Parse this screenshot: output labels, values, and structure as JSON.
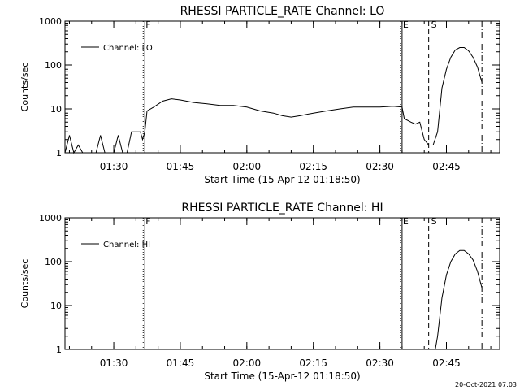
{
  "footer": {
    "timestamp": "20-Oct-2021 07:03"
  },
  "chart_data": [
    {
      "type": "line",
      "title": "RHESSI PARTICLE_RATE Channel: LO",
      "xlabel": "Start Time (15-Apr-12 01:18:50)",
      "ylabel": "Counts/sec",
      "y_scale": "log",
      "xlim": [
        "01:19",
        "02:57"
      ],
      "ylim": [
        1,
        1000
      ],
      "x_ticks": [
        "01:30",
        "01:45",
        "02:00",
        "02:15",
        "02:30",
        "02:45"
      ],
      "y_ticks": [
        "1",
        "10",
        "100",
        "1000"
      ],
      "legend": {
        "label": "Channel: LO",
        "position": "top-left"
      },
      "markers": [
        {
          "label": "F",
          "style": "dotted",
          "time": "01:37"
        },
        {
          "label": "",
          "style": "solid",
          "time": "01:37"
        },
        {
          "label": "E",
          "style": "dotted",
          "time": "02:35"
        },
        {
          "label": "",
          "style": "solid",
          "time": "02:35"
        },
        {
          "label": "S",
          "style": "dashed",
          "time": "02:41"
        },
        {
          "label": "",
          "style": "dash-dot",
          "time": "02:53"
        }
      ],
      "series": [
        {
          "name": "Channel: LO",
          "points": [
            [
              "01:19",
              1
            ],
            [
              "01:20",
              2.5
            ],
            [
              "01:21",
              1
            ],
            [
              "01:22",
              1.5
            ],
            [
              "01:23",
              1
            ],
            [
              "01:26",
              1
            ],
            [
              "01:27",
              2.5
            ],
            [
              "01:28",
              1
            ],
            [
              "01:30",
              1
            ],
            [
              "01:31",
              2.5
            ],
            [
              "01:32",
              1
            ],
            [
              "01:33",
              1
            ],
            [
              "01:34",
              3
            ],
            [
              "01:35",
              3
            ],
            [
              "01:36",
              3
            ],
            [
              "01:36.5",
              2
            ],
            [
              "01:37",
              3
            ],
            [
              "01:37.5",
              9
            ],
            [
              "01:39",
              11
            ],
            [
              "01:41",
              15
            ],
            [
              "01:43",
              17
            ],
            [
              "01:45",
              16
            ],
            [
              "01:48",
              14
            ],
            [
              "01:51",
              13
            ],
            [
              "01:54",
              12
            ],
            [
              "01:57",
              12
            ],
            [
              "02:00",
              11
            ],
            [
              "02:03",
              9
            ],
            [
              "02:06",
              8
            ],
            [
              "02:08",
              7
            ],
            [
              "02:10",
              6.5
            ],
            [
              "02:12",
              7
            ],
            [
              "02:15",
              8
            ],
            [
              "02:18",
              9
            ],
            [
              "02:21",
              10
            ],
            [
              "02:24",
              11
            ],
            [
              "02:27",
              11
            ],
            [
              "02:30",
              11
            ],
            [
              "02:33",
              11.5
            ],
            [
              "02:35",
              11
            ],
            [
              "02:35.5",
              6
            ],
            [
              "02:37",
              5
            ],
            [
              "02:38",
              4.5
            ],
            [
              "02:39",
              5
            ],
            [
              "02:40",
              2
            ],
            [
              "02:41",
              1.5
            ],
            [
              "02:42",
              1.5
            ],
            [
              "02:43",
              3
            ],
            [
              "02:44",
              30
            ],
            [
              "02:45",
              80
            ],
            [
              "02:46",
              150
            ],
            [
              "02:47",
              220
            ],
            [
              "02:48",
              250
            ],
            [
              "02:49",
              250
            ],
            [
              "02:50",
              210
            ],
            [
              "02:51",
              150
            ],
            [
              "02:52",
              90
            ],
            [
              "02:53",
              40
            ]
          ]
        }
      ]
    },
    {
      "type": "line",
      "title": "RHESSI PARTICLE_RATE Channel: HI",
      "xlabel": "Start Time (15-Apr-12 01:18:50)",
      "ylabel": "Counts/sec",
      "y_scale": "log",
      "xlim": [
        "01:19",
        "02:57"
      ],
      "ylim": [
        1,
        1000
      ],
      "x_ticks": [
        "01:30",
        "01:45",
        "02:00",
        "02:15",
        "02:30",
        "02:45"
      ],
      "y_ticks": [
        "1",
        "10",
        "100",
        "1000"
      ],
      "legend": {
        "label": "Channel: HI",
        "position": "top-left"
      },
      "markers": [
        {
          "label": "F",
          "style": "dotted",
          "time": "01:37"
        },
        {
          "label": "",
          "style": "solid",
          "time": "01:37"
        },
        {
          "label": "E",
          "style": "dotted",
          "time": "02:35"
        },
        {
          "label": "",
          "style": "solid",
          "time": "02:35"
        },
        {
          "label": "S",
          "style": "dashed",
          "time": "02:41"
        },
        {
          "label": "",
          "style": "dash-dot",
          "time": "02:53"
        }
      ],
      "series": [
        {
          "name": "Channel: HI",
          "points": [
            [
              "02:42.5",
              1
            ],
            [
              "02:43",
              2
            ],
            [
              "02:44",
              15
            ],
            [
              "02:45",
              50
            ],
            [
              "02:46",
              100
            ],
            [
              "02:47",
              150
            ],
            [
              "02:48",
              180
            ],
            [
              "02:49",
              180
            ],
            [
              "02:50",
              150
            ],
            [
              "02:51",
              110
            ],
            [
              "02:52",
              60
            ],
            [
              "02:53",
              25
            ]
          ]
        }
      ]
    }
  ]
}
